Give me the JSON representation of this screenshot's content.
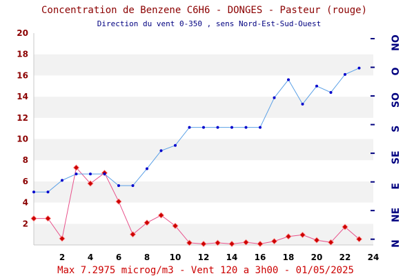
{
  "chart_data": {
    "type": "line",
    "title": "Concentration de Benzene C6H6  -   DONGES - Pasteur (rouge)",
    "subtitle": "Direction du vent 0-350 , sens Nord-Est-Sud-Ouest",
    "footer": "Max 7.2975 microg/m3 - Vent 120  a 3h00 - 01/05/2025",
    "x": [
      0,
      1,
      2,
      3,
      4,
      5,
      6,
      7,
      8,
      9,
      10,
      11,
      12,
      13,
      14,
      15,
      16,
      17,
      18,
      19,
      20,
      21,
      22,
      23
    ],
    "xlim": [
      0,
      24
    ],
    "x_ticks": [
      2,
      4,
      6,
      8,
      10,
      12,
      14,
      16,
      18,
      20,
      22,
      24
    ],
    "ylim": [
      0,
      20
    ],
    "y_ticks": [
      2,
      4,
      6,
      8,
      10,
      12,
      14,
      16,
      18,
      20
    ],
    "y2_labels": [
      "N",
      "NE",
      "E",
      "SE",
      "S",
      "SO",
      "O",
      "NO"
    ],
    "grid": "horizontal-bands",
    "series": [
      {
        "axis": "left",
        "color": "#e8508a",
        "marker_color": "#cc0000",
        "values": [
          2.5,
          2.5,
          0.6,
          7.3,
          5.8,
          6.8,
          4.1,
          1.0,
          2.1,
          2.8,
          1.8,
          0.2,
          0.1,
          0.2,
          0.1,
          0.25,
          0.1,
          0.35,
          0.8,
          0.95,
          0.45,
          0.25,
          1.7,
          0.55
        ]
      },
      {
        "axis": "right",
        "color": "#5aa0e6",
        "marker_color": "#0000cc",
        "values": [
          5.0,
          5.0,
          6.1,
          6.7,
          6.7,
          6.7,
          5.6,
          5.6,
          7.2,
          8.9,
          9.4,
          11.1,
          11.1,
          11.1,
          11.1,
          11.1,
          11.1,
          13.9,
          15.6,
          13.3,
          15.0,
          14.4,
          16.1,
          16.7
        ]
      }
    ]
  }
}
